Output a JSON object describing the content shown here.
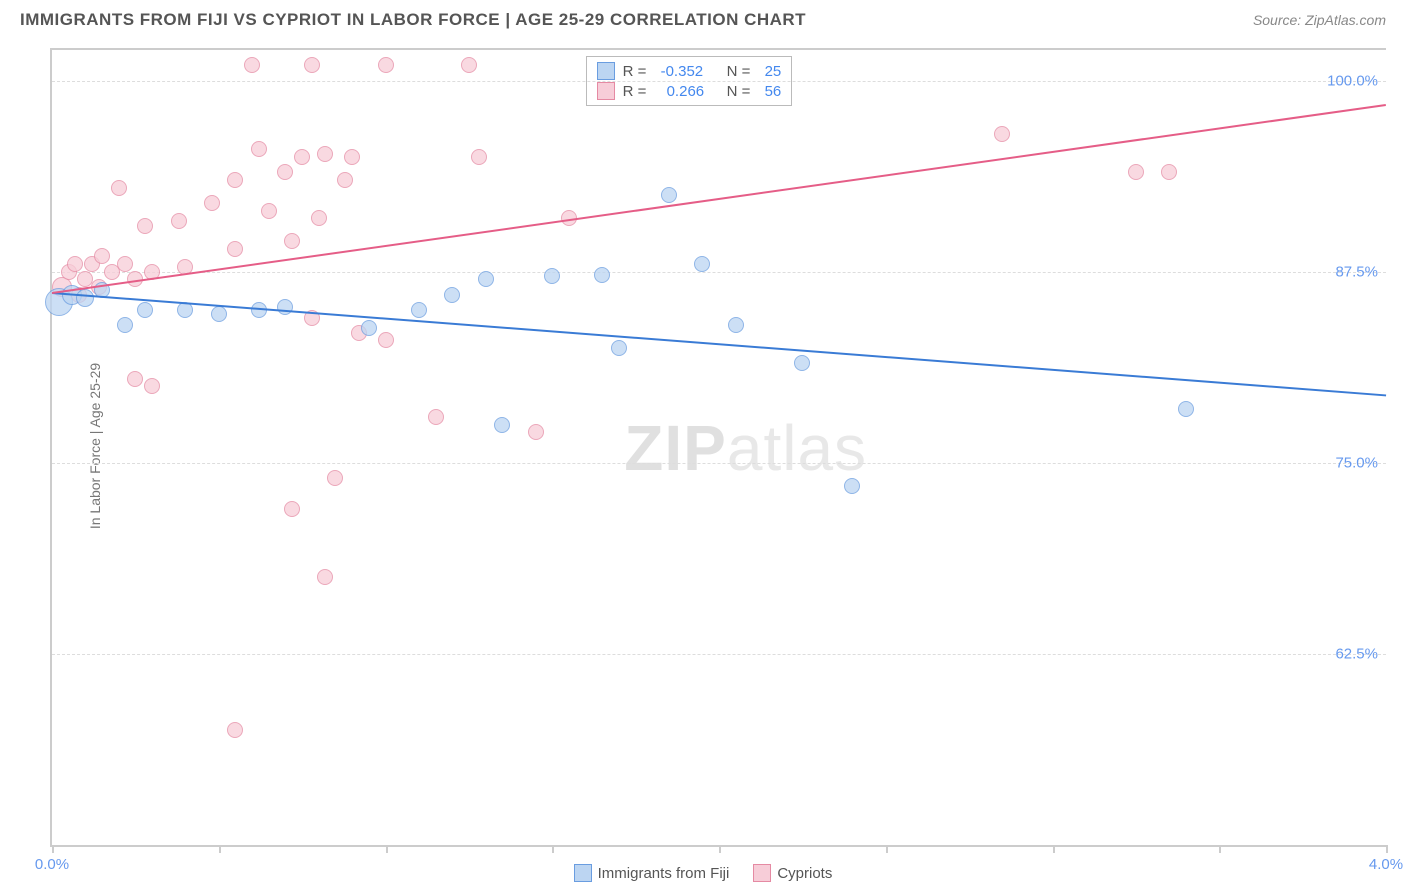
{
  "title": "IMMIGRANTS FROM FIJI VS CYPRIOT IN LABOR FORCE | AGE 25-29 CORRELATION CHART",
  "source": "Source: ZipAtlas.com",
  "ylabel": "In Labor Force | Age 25-29",
  "watermark_bold": "ZIP",
  "watermark_rest": "atlas",
  "chart": {
    "type": "scatter",
    "xlim": [
      0.0,
      4.0
    ],
    "ylim": [
      50.0,
      102.0
    ],
    "ytick_labels": [
      "100.0%",
      "87.5%",
      "75.0%",
      "62.5%"
    ],
    "ytick_values": [
      100.0,
      87.5,
      75.0,
      62.5
    ],
    "xtick_values": [
      0.0,
      0.5,
      1.0,
      1.5,
      2.0,
      2.5,
      3.0,
      3.5,
      4.0
    ],
    "xtick_labels_shown": {
      "0": "0.0%",
      "8": "4.0%"
    },
    "background_color": "#ffffff",
    "grid_color": "#dddddd",
    "axis_color": "#cccccc",
    "tick_label_color": "#6699ee",
    "series": [
      {
        "name": "Immigrants from Fiji",
        "fill": "#bcd5f2",
        "stroke": "#6a9de0",
        "line_color": "#3a7bd5",
        "R": "-0.352",
        "N": "25",
        "trend": {
          "x1": 0.0,
          "y1": 86.2,
          "x2": 4.0,
          "y2": 79.5
        },
        "points": [
          {
            "x": 0.02,
            "y": 85.5,
            "r": 14
          },
          {
            "x": 0.06,
            "y": 86.0,
            "r": 10
          },
          {
            "x": 0.1,
            "y": 85.8,
            "r": 9
          },
          {
            "x": 0.15,
            "y": 86.3,
            "r": 8
          },
          {
            "x": 0.22,
            "y": 84.0,
            "r": 8
          },
          {
            "x": 0.28,
            "y": 85.0,
            "r": 8
          },
          {
            "x": 0.4,
            "y": 85.0,
            "r": 8
          },
          {
            "x": 0.5,
            "y": 84.7,
            "r": 8
          },
          {
            "x": 0.62,
            "y": 85.0,
            "r": 8
          },
          {
            "x": 0.7,
            "y": 85.2,
            "r": 8
          },
          {
            "x": 0.95,
            "y": 83.8,
            "r": 8
          },
          {
            "x": 1.1,
            "y": 85.0,
            "r": 8
          },
          {
            "x": 1.2,
            "y": 86.0,
            "r": 8
          },
          {
            "x": 1.3,
            "y": 87.0,
            "r": 8
          },
          {
            "x": 1.35,
            "y": 77.5,
            "r": 8
          },
          {
            "x": 1.5,
            "y": 87.2,
            "r": 8
          },
          {
            "x": 1.65,
            "y": 87.3,
            "r": 8
          },
          {
            "x": 1.7,
            "y": 82.5,
            "r": 8
          },
          {
            "x": 1.85,
            "y": 92.5,
            "r": 8
          },
          {
            "x": 1.95,
            "y": 88.0,
            "r": 8
          },
          {
            "x": 2.05,
            "y": 84.0,
            "r": 8
          },
          {
            "x": 2.25,
            "y": 81.5,
            "r": 8
          },
          {
            "x": 2.4,
            "y": 73.5,
            "r": 8
          },
          {
            "x": 3.4,
            "y": 78.5,
            "r": 8
          }
        ]
      },
      {
        "name": "Cypriots",
        "fill": "#f7cdd8",
        "stroke": "#e58aa3",
        "line_color": "#e55d87",
        "R": "0.266",
        "N": "56",
        "trend": {
          "x1": 0.0,
          "y1": 86.2,
          "x2": 4.0,
          "y2": 98.5
        },
        "points": [
          {
            "x": 0.03,
            "y": 86.5,
            "r": 10
          },
          {
            "x": 0.05,
            "y": 87.5,
            "r": 8
          },
          {
            "x": 0.07,
            "y": 88.0,
            "r": 8
          },
          {
            "x": 0.08,
            "y": 86.0,
            "r": 8
          },
          {
            "x": 0.1,
            "y": 87.0,
            "r": 8
          },
          {
            "x": 0.12,
            "y": 88.0,
            "r": 8
          },
          {
            "x": 0.14,
            "y": 86.5,
            "r": 8
          },
          {
            "x": 0.15,
            "y": 88.5,
            "r": 8
          },
          {
            "x": 0.18,
            "y": 87.5,
            "r": 8
          },
          {
            "x": 0.2,
            "y": 93.0,
            "r": 8
          },
          {
            "x": 0.22,
            "y": 88.0,
            "r": 8
          },
          {
            "x": 0.25,
            "y": 87.0,
            "r": 8
          },
          {
            "x": 0.25,
            "y": 80.5,
            "r": 8
          },
          {
            "x": 0.28,
            "y": 90.5,
            "r": 8
          },
          {
            "x": 0.3,
            "y": 87.5,
            "r": 8
          },
          {
            "x": 0.3,
            "y": 80.0,
            "r": 8
          },
          {
            "x": 0.38,
            "y": 90.8,
            "r": 8
          },
          {
            "x": 0.4,
            "y": 87.8,
            "r": 8
          },
          {
            "x": 0.48,
            "y": 92.0,
            "r": 8
          },
          {
            "x": 0.55,
            "y": 93.5,
            "r": 8
          },
          {
            "x": 0.55,
            "y": 89.0,
            "r": 8
          },
          {
            "x": 0.55,
            "y": 57.5,
            "r": 8
          },
          {
            "x": 0.6,
            "y": 101.0,
            "r": 8
          },
          {
            "x": 0.62,
            "y": 95.5,
            "r": 8
          },
          {
            "x": 0.65,
            "y": 91.5,
            "r": 8
          },
          {
            "x": 0.7,
            "y": 94.0,
            "r": 8
          },
          {
            "x": 0.72,
            "y": 89.5,
            "r": 8
          },
          {
            "x": 0.72,
            "y": 72.0,
            "r": 8
          },
          {
            "x": 0.75,
            "y": 95.0,
            "r": 8
          },
          {
            "x": 0.78,
            "y": 101.0,
            "r": 8
          },
          {
            "x": 0.78,
            "y": 84.5,
            "r": 8
          },
          {
            "x": 0.8,
            "y": 91.0,
            "r": 8
          },
          {
            "x": 0.82,
            "y": 95.2,
            "r": 8
          },
          {
            "x": 0.82,
            "y": 67.5,
            "r": 8
          },
          {
            "x": 0.85,
            "y": 74.0,
            "r": 8
          },
          {
            "x": 0.88,
            "y": 93.5,
            "r": 8
          },
          {
            "x": 0.9,
            "y": 95.0,
            "r": 8
          },
          {
            "x": 0.92,
            "y": 83.5,
            "r": 8
          },
          {
            "x": 1.0,
            "y": 101.0,
            "r": 8
          },
          {
            "x": 1.0,
            "y": 83.0,
            "r": 8
          },
          {
            "x": 1.15,
            "y": 78.0,
            "r": 8
          },
          {
            "x": 1.25,
            "y": 101.0,
            "r": 8
          },
          {
            "x": 1.28,
            "y": 95.0,
            "r": 8
          },
          {
            "x": 1.45,
            "y": 77.0,
            "r": 8
          },
          {
            "x": 1.55,
            "y": 91.0,
            "r": 8
          },
          {
            "x": 2.85,
            "y": 96.5,
            "r": 8
          },
          {
            "x": 3.25,
            "y": 94.0,
            "r": 8
          },
          {
            "x": 3.35,
            "y": 94.0,
            "r": 8
          }
        ]
      }
    ]
  },
  "stats_box": {
    "r_label": "R =",
    "n_label": "N ="
  },
  "legend": {
    "series1": "Immigrants from Fiji",
    "series2": "Cypriots"
  }
}
